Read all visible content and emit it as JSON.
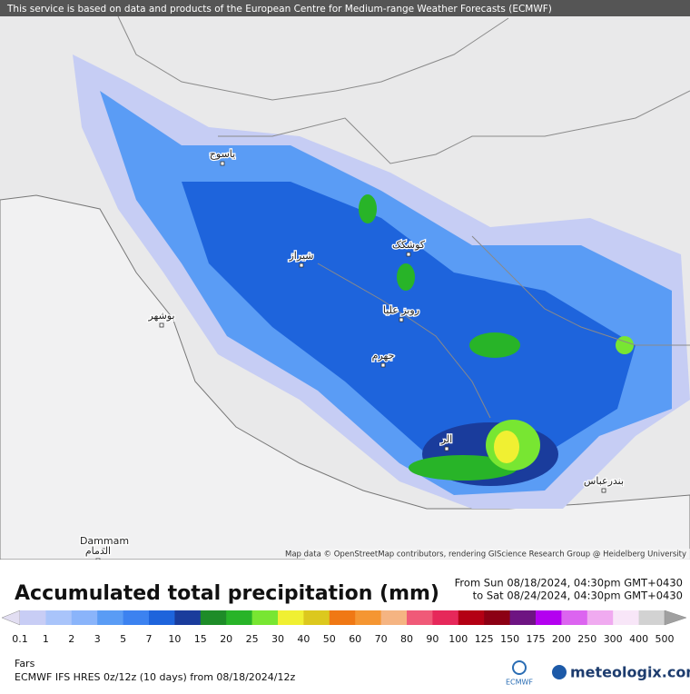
{
  "header": {
    "notice": "This service is based on data and products of the European Centre for Medium-range Weather Forecasts (ECMWF)"
  },
  "map": {
    "attribution": "Map data © OpenStreetMap contributors, rendering GIScience Research Group @ Heidelberg University",
    "places": [
      "یاسوج",
      "شیراز",
      "کوشکک",
      "جهرم",
      "بوشهر",
      "روبز علیا",
      "الر",
      "بندرعباس",
      "Dammam",
      "الدمام"
    ]
  },
  "legend": {
    "title": "Accumulated total precipitation (mm)",
    "from": "From Sun 08/18/2024, 04:30pm GMT+0430",
    "to": "to Sat 08/24/2024, 04:30pm GMT+0430",
    "levels": [
      0.1,
      1,
      2,
      3,
      5,
      7,
      10,
      15,
      20,
      25,
      30,
      40,
      50,
      60,
      70,
      80,
      90,
      100,
      125,
      150,
      175,
      200,
      250,
      300,
      400,
      500
    ],
    "under_color": "#e2def2",
    "colors": [
      "#c8cdf5",
      "#a9c4fa",
      "#8ab4fa",
      "#5a9cf5",
      "#3c82f0",
      "#1e64dc",
      "#1a3c9c",
      "#1e8c28",
      "#28b428",
      "#78e632",
      "#f0f032",
      "#dcc81e",
      "#f07814",
      "#f59632",
      "#f5b482",
      "#f05a78",
      "#e6285a",
      "#b40014",
      "#8c0014",
      "#6e1482",
      "#b400f0",
      "#dc64f0",
      "#f0aaf0",
      "#f8e6f8",
      "#d2d2d2"
    ],
    "over_color": "#a0a0a0"
  },
  "footer": {
    "region": "Fars",
    "model": "ECMWF IFS HRES 0z/12z (10 days) from 08/18/2024/12z",
    "logo_left": "ECMWF",
    "logo_right": "meteologix.com"
  }
}
